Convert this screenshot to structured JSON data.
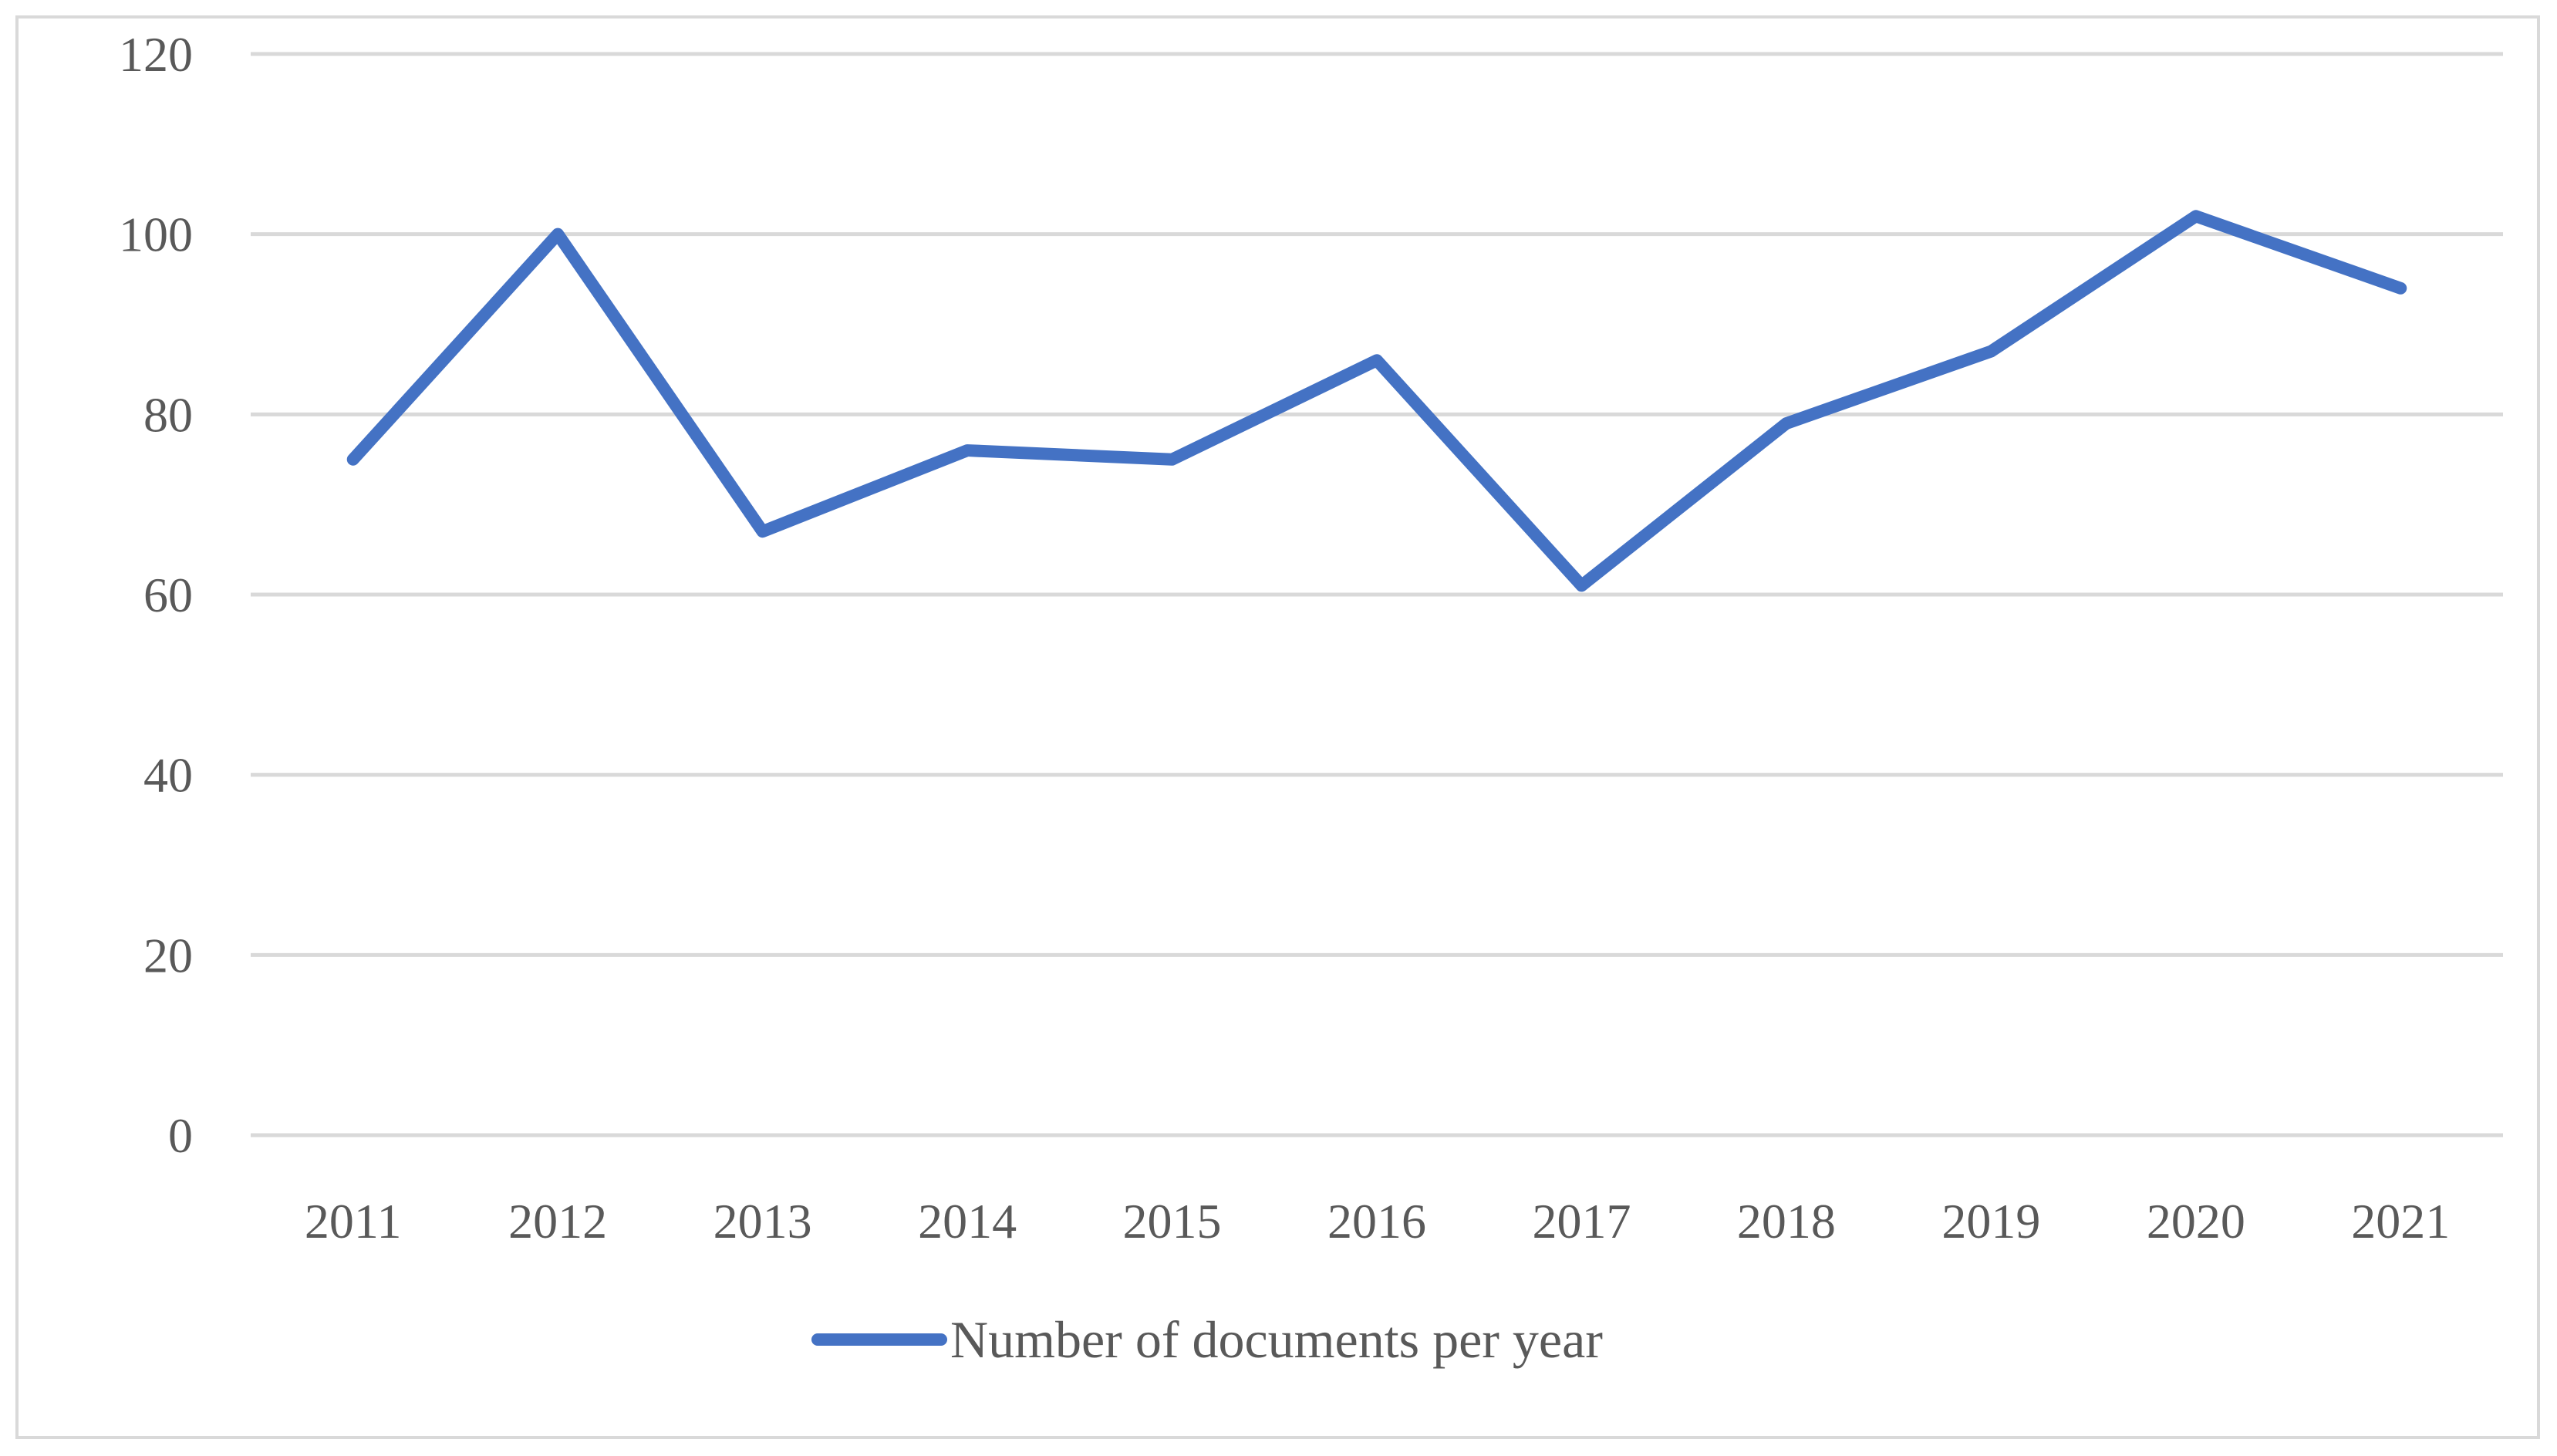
{
  "chart_data": {
    "type": "line",
    "categories": [
      "2011",
      "2012",
      "2013",
      "2014",
      "2015",
      "2016",
      "2017",
      "2018",
      "2019",
      "2020",
      "2021"
    ],
    "series": [
      {
        "name": "Number of documents per year",
        "values": [
          75,
          100,
          67,
          76,
          75,
          86,
          61,
          79,
          87,
          102,
          94
        ],
        "color": "#4472c4"
      }
    ],
    "yticks": [
      "0",
      "20",
      "40",
      "60",
      "80",
      "100",
      "120"
    ],
    "ylim": [
      0,
      120
    ],
    "title": "",
    "xlabel": "",
    "ylabel": "",
    "grid": true,
    "legend_position": "bottom"
  }
}
